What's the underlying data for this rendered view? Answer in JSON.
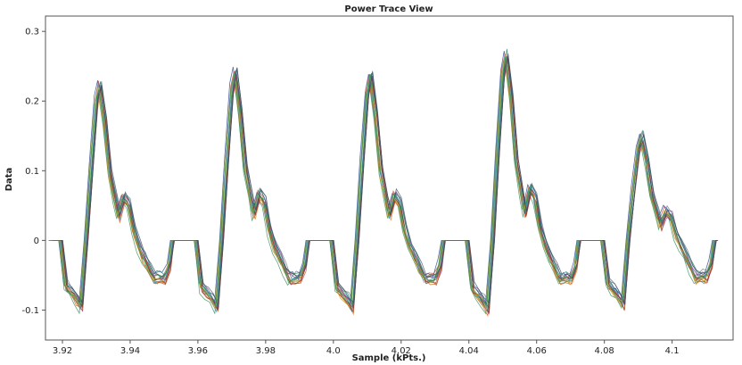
{
  "chart_data": {
    "type": "line",
    "title": "Power Trace View",
    "xlabel": "Sample (kPts.)",
    "ylabel": "Data",
    "xlim": [
      3.915,
      4.118
    ],
    "ylim": [
      -0.143,
      0.322
    ],
    "x_ticks": [
      "3.92",
      "3.94",
      "3.96",
      "3.98",
      "4.0",
      "4.02",
      "4.04",
      "4.06",
      "4.08",
      "4.1"
    ],
    "x_tick_values": [
      3.92,
      3.94,
      3.96,
      3.98,
      4.0,
      4.02,
      4.04,
      4.06,
      4.08,
      4.1
    ],
    "y_ticks": [
      "-0.1",
      "0",
      "0.1",
      "0.2",
      "0.3"
    ],
    "y_tick_values": [
      -0.1,
      0,
      0.1,
      0.2,
      0.3
    ],
    "grid": false,
    "legend": "none",
    "series_count": 18,
    "series_colors": [
      "#1f3b8f",
      "#c0392b",
      "#2e8b57",
      "#8e44ad",
      "#e67e22",
      "#16a085",
      "#7f8c8d",
      "#d35400",
      "#2980b9",
      "#a0522d",
      "#6c3483",
      "#b7950b",
      "#117864",
      "#922b21",
      "#5d6d7e",
      "#cdb86a",
      "#34495e",
      "#229954"
    ],
    "template": {
      "x": [
        3.9165,
        3.918,
        3.9195,
        3.921,
        3.9225,
        3.924,
        3.9255,
        3.927,
        3.9285,
        3.93,
        3.931,
        3.9325,
        3.934,
        3.9355,
        3.9365,
        3.938,
        3.9395,
        3.941,
        3.9425,
        3.944,
        3.9455,
        3.947,
        3.9485,
        3.95,
        3.9515,
        3.9525,
        3.953
      ],
      "y": [
        0.0,
        0.0,
        0.0,
        -0.066,
        -0.075,
        -0.083,
        -0.095,
        0.0,
        0.105,
        0.2,
        0.222,
        0.17,
        0.095,
        0.058,
        0.035,
        0.062,
        0.052,
        0.015,
        -0.008,
        -0.025,
        -0.04,
        -0.055,
        -0.053,
        -0.054,
        -0.035,
        0.0,
        0.0
      ]
    },
    "pulses": [
      {
        "x_offset": 0.0,
        "peak": 0.222
      },
      {
        "x_offset": 0.04,
        "peak": 0.24
      },
      {
        "x_offset": 0.08,
        "peak": 0.235
      },
      {
        "x_offset": 0.12,
        "peak": 0.265
      },
      {
        "x_offset": 0.16,
        "peak": 0.148
      }
    ]
  }
}
